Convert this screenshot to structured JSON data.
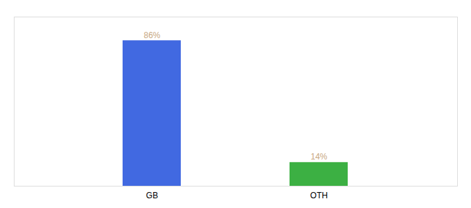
{
  "chart_data": {
    "type": "bar",
    "categories": [
      "GB",
      "OTH"
    ],
    "values": [
      86,
      14
    ],
    "value_labels": [
      "86%",
      "14%"
    ],
    "colors": [
      "#4169E1",
      "#3CB043"
    ],
    "ylim": [
      0,
      100
    ],
    "data_labels": true,
    "tick_labels": "x"
  }
}
